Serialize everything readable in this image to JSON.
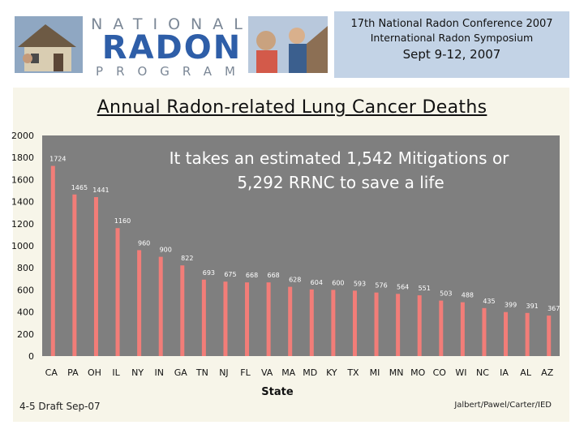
{
  "header": {
    "logo_top": "NATIONAL",
    "logo_main": "RADON",
    "logo_bottom": "PROGRAM",
    "conference_line1": "17th National Radon Conference 2007",
    "conference_line2": "International Radon Symposium",
    "conference_dates": "Sept 9-12, 2007"
  },
  "footer": {
    "left": "4-5 Draft Sep-07",
    "right": "Jalbert/Pawel/Carter/IED"
  },
  "colors": {
    "bar": "#f27d78",
    "plot_bg": "#7f7f7f",
    "conf_bg": "#c3d3e6",
    "logo_blue": "#2e5ea8",
    "logo_gray": "#7b8796"
  },
  "chart_data": {
    "type": "bar",
    "title": "Annual Radon-related Lung Cancer Deaths",
    "annotation_line1": "It takes an estimated 1,542 Mitigations or",
    "annotation_line2": "5,292 RRNC to save a life",
    "xlabel": "State",
    "ylabel": "",
    "ylim": [
      0,
      2000
    ],
    "yticks": [
      0,
      200,
      400,
      600,
      800,
      1000,
      1200,
      1400,
      1600,
      1800,
      2000
    ],
    "categories": [
      "CA",
      "PA",
      "OH",
      "IL",
      "NY",
      "IN",
      "GA",
      "TN",
      "NJ",
      "FL",
      "VA",
      "MA",
      "MD",
      "KY",
      "TX",
      "MI",
      "MN",
      "MO",
      "CO",
      "WI",
      "NC",
      "IA",
      "AL",
      "AZ"
    ],
    "values": [
      1724,
      1465,
      1441,
      1160,
      960,
      900,
      822,
      693,
      675,
      668,
      668,
      628,
      604,
      600,
      593,
      576,
      564,
      551,
      503,
      488,
      435,
      399,
      391,
      367
    ],
    "grid": false,
    "legend": "none"
  }
}
